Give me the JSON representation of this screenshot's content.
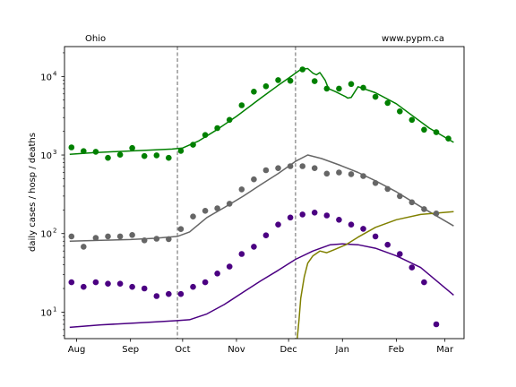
{
  "chart_data": {
    "type": "scatter",
    "annotations": {
      "left": "Ohio",
      "right": "www.pypm.ca"
    },
    "ylabel": "daily cases / hosp / deaths",
    "yscale": "log",
    "ylim": [
      4.6,
      24000
    ],
    "xlim": [
      "2020-07-25",
      "2021-03-12"
    ],
    "x_ticks": [
      {
        "label": "Aug",
        "date": "2020-08-01"
      },
      {
        "label": "Sep",
        "date": "2020-09-01"
      },
      {
        "label": "Oct",
        "date": "2020-10-01"
      },
      {
        "label": "Nov",
        "date": "2020-11-01"
      },
      {
        "label": "Dec",
        "date": "2020-12-01"
      },
      {
        "label": "Jan",
        "date": "2021-01-01"
      },
      {
        "label": "Feb",
        "date": "2021-02-01"
      },
      {
        "label": "Mar",
        "date": "2021-03-01"
      }
    ],
    "y_ticks": [
      {
        "label": "10",
        "exp": "1",
        "value": 10
      },
      {
        "label": "10",
        "exp": "2",
        "value": 100
      },
      {
        "label": "10",
        "exp": "3",
        "value": 1000
      },
      {
        "label": "10",
        "exp": "4",
        "value": 10000
      }
    ],
    "vlines": [
      "2020-09-28",
      "2020-12-05"
    ],
    "points": [
      {
        "color": "#008000",
        "x": [
          "2020-07-29",
          "2020-08-05",
          "2020-08-12",
          "2020-08-19",
          "2020-08-26",
          "2020-09-02",
          "2020-09-09",
          "2020-09-16",
          "2020-09-23",
          "2020-09-30",
          "2020-10-07",
          "2020-10-14",
          "2020-10-21",
          "2020-10-28",
          "2020-11-04",
          "2020-11-11",
          "2020-11-18",
          "2020-11-25",
          "2020-12-02",
          "2020-12-09",
          "2020-12-16",
          "2020-12-23",
          "2020-12-30",
          "2021-01-06",
          "2021-01-13",
          "2021-01-20",
          "2021-01-27",
          "2021-02-03",
          "2021-02-10",
          "2021-02-17",
          "2021-02-24",
          "2021-03-03"
        ],
        "y": [
          1250,
          1120,
          1100,
          920,
          1010,
          1230,
          970,
          990,
          920,
          1130,
          1350,
          1800,
          2200,
          2800,
          4300,
          6400,
          7500,
          9000,
          8800,
          12300,
          8700,
          7000,
          7000,
          8000,
          7200,
          5500,
          4600,
          3600,
          2800,
          2100,
          1950,
          1620
        ]
      },
      {
        "color": "#666666",
        "x": [
          "2020-07-29",
          "2020-08-05",
          "2020-08-12",
          "2020-08-19",
          "2020-08-26",
          "2020-09-02",
          "2020-09-09",
          "2020-09-16",
          "2020-09-23",
          "2020-09-30",
          "2020-10-07",
          "2020-10-14",
          "2020-10-21",
          "2020-10-28",
          "2020-11-04",
          "2020-11-11",
          "2020-11-18",
          "2020-11-25",
          "2020-12-02",
          "2020-12-09",
          "2020-12-16",
          "2020-12-23",
          "2020-12-30",
          "2021-01-06",
          "2021-01-13",
          "2021-01-20",
          "2021-01-27",
          "2021-02-03",
          "2021-02-10",
          "2021-02-17",
          "2021-02-24"
        ],
        "y": [
          92,
          68,
          88,
          92,
          92,
          96,
          82,
          86,
          85,
          114,
          165,
          195,
          210,
          240,
          365,
          490,
          640,
          680,
          720,
          720,
          680,
          580,
          600,
          570,
          540,
          440,
          370,
          300,
          250,
          205,
          180
        ]
      },
      {
        "color": "#4b0082",
        "x": [
          "2020-07-29",
          "2020-08-05",
          "2020-08-12",
          "2020-08-19",
          "2020-08-26",
          "2020-09-02",
          "2020-09-09",
          "2020-09-16",
          "2020-09-23",
          "2020-09-30",
          "2020-10-07",
          "2020-10-14",
          "2020-10-21",
          "2020-10-28",
          "2020-11-04",
          "2020-11-11",
          "2020-11-18",
          "2020-11-25",
          "2020-12-02",
          "2020-12-09",
          "2020-12-16",
          "2020-12-23",
          "2020-12-30",
          "2021-01-06",
          "2021-01-13",
          "2021-01-20",
          "2021-01-27",
          "2021-02-03",
          "2021-02-10",
          "2021-02-17",
          "2021-02-24"
        ],
        "y": [
          24,
          21,
          24,
          23,
          23,
          21,
          20,
          16,
          17,
          17,
          21,
          24,
          31,
          38,
          55,
          68,
          95,
          130,
          160,
          175,
          185,
          170,
          150,
          130,
          115,
          92,
          72,
          55,
          37,
          24,
          7
        ]
      }
    ],
    "curves": [
      {
        "color": "#008000",
        "x": [
          "2020-07-28",
          "2020-08-10",
          "2020-08-25",
          "2020-09-10",
          "2020-09-25",
          "2020-10-01",
          "2020-10-10",
          "2020-10-20",
          "2020-11-01",
          "2020-11-15",
          "2020-11-25",
          "2020-12-01",
          "2020-12-08",
          "2020-12-12",
          "2020-12-15",
          "2020-12-17",
          "2020-12-19",
          "2020-12-22",
          "2020-12-24",
          "2020-12-28",
          "2021-01-03",
          "2021-01-04",
          "2021-01-06",
          "2021-01-10",
          "2021-01-20",
          "2021-02-01",
          "2021-02-10",
          "2021-02-20",
          "2021-03-06"
        ],
        "y": [
          1020,
          1070,
          1110,
          1150,
          1190,
          1230,
          1500,
          2050,
          3100,
          5300,
          7700,
          9500,
          12300,
          12600,
          11000,
          10500,
          11200,
          9000,
          7000,
          6400,
          5500,
          5300,
          5400,
          7400,
          6200,
          4500,
          3200,
          2200,
          1450
        ]
      },
      {
        "color": "#666666",
        "x": [
          "2020-07-28",
          "2020-08-15",
          "2020-09-01",
          "2020-09-15",
          "2020-09-28",
          "2020-10-05",
          "2020-10-15",
          "2020-10-25",
          "2020-11-05",
          "2020-11-15",
          "2020-11-25",
          "2020-12-05",
          "2020-12-12",
          "2020-12-20",
          "2020-12-30",
          "2021-01-10",
          "2021-01-20",
          "2021-02-01",
          "2021-02-15",
          "2021-03-06"
        ],
        "y": [
          80,
          82,
          84,
          87,
          92,
          105,
          160,
          215,
          300,
          420,
          580,
          830,
          1000,
          900,
          750,
          600,
          470,
          340,
          220,
          125
        ]
      },
      {
        "color": "#4b0082",
        "x": [
          "2020-07-28",
          "2020-08-15",
          "2020-09-01",
          "2020-09-15",
          "2020-09-28",
          "2020-10-05",
          "2020-10-15",
          "2020-10-25",
          "2020-11-05",
          "2020-11-15",
          "2020-11-25",
          "2020-12-05",
          "2020-12-15",
          "2020-12-25",
          "2021-01-01",
          "2021-01-10",
          "2021-01-20",
          "2021-02-01",
          "2021-02-15",
          "2021-03-06"
        ],
        "y": [
          6.4,
          6.9,
          7.2,
          7.5,
          7.8,
          8,
          9.5,
          12.5,
          18,
          25,
          34,
          47,
          60,
          72,
          74,
          72,
          65,
          52,
          37,
          16.5
        ]
      },
      {
        "color": "#808000",
        "x": [
          "2020-12-06",
          "2020-12-07",
          "2020-12-08",
          "2020-12-10",
          "2020-12-12",
          "2020-12-15",
          "2020-12-19",
          "2020-12-23",
          "2020-12-27",
          "2021-01-03",
          "2021-01-10",
          "2021-01-20",
          "2021-02-01",
          "2021-02-15",
          "2021-03-06"
        ],
        "y": [
          4.6,
          8,
          15,
          28,
          42,
          52,
          60,
          57,
          62,
          72,
          90,
          120,
          150,
          175,
          190
        ]
      }
    ]
  }
}
